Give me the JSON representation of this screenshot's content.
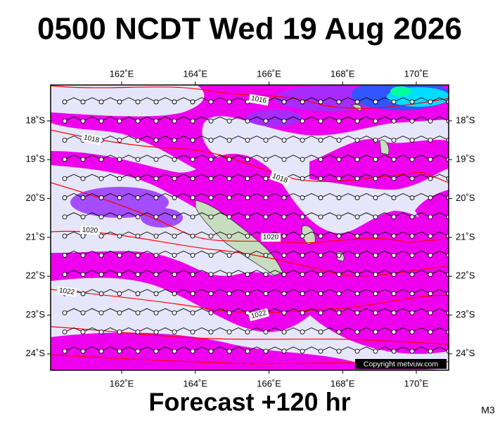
{
  "header": {
    "title": "0500 NCDT Wed 19 Aug 2026"
  },
  "lon_labels": [
    "162˚E",
    "164˚E",
    "166˚E",
    "168˚E",
    "170˚E"
  ],
  "lat_labels": [
    "18˚S",
    "19˚S",
    "20˚S",
    "21˚S",
    "22˚S",
    "23˚S",
    "24˚S"
  ],
  "isobar_labels": [
    "1016",
    "1018",
    "1018",
    "1020",
    "1020",
    "1022",
    "1022"
  ],
  "copyright": "Copyright metvuw.com",
  "footer": "Forecast +120 hr",
  "model": "M3"
}
